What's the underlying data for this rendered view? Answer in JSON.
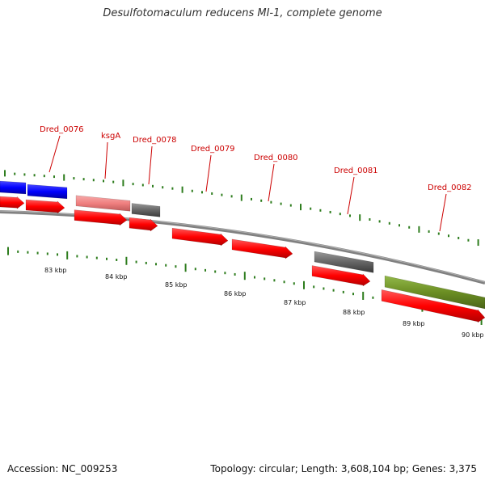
{
  "header": {
    "title": "Desulfotomaculum reducens MI-1, complete genome"
  },
  "footer": {
    "accession": "Accession: NC_009253",
    "topology": "Topology: circular; Length: 3,608,104 bp; Genes: 3,375"
  },
  "colors": {
    "forward_gene": "#ff0000",
    "pseudo_gene": "#f08080",
    "hypothetical": "#666666",
    "blue_feature": "#0000ff",
    "green_feature": "#6b8e23",
    "label": "#cc0000",
    "tick": "#2e7d1e",
    "backbone": "#808080"
  },
  "scale": {
    "unit": "kbp",
    "labels": [
      "83 kbp",
      "84 kbp",
      "85 kbp",
      "86 kbp",
      "87 kbp",
      "88 kbp",
      "89 kbp",
      "90 kbp"
    ]
  },
  "gene_labels": [
    "Dred_0076",
    "ksgA",
    "Dred_0078",
    "Dred_0079",
    "Dred_0080",
    "Dred_0081",
    "Dred_0082"
  ]
}
